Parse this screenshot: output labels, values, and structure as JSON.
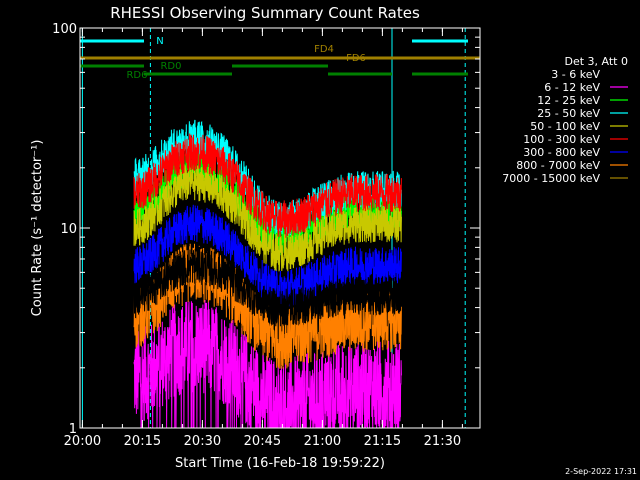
{
  "chart_data": {
    "type": "line",
    "title": "RHESSI Observing Summary Count Rates",
    "xlabel": "Start Time (16-Feb-18 19:59:22)",
    "ylabel": "Count Rate (s⁻¹ detector⁻¹)",
    "yscale": "log",
    "ylim": [
      1,
      100
    ],
    "xlim_min": [
      0,
      100
    ],
    "x_ticks": [
      {
        "label": "20:00",
        "min": 0.6
      },
      {
        "label": "20:15",
        "min": 15.6
      },
      {
        "label": "20:30",
        "min": 30.6
      },
      {
        "label": "20:45",
        "min": 45.6
      },
      {
        "label": "21:00",
        "min": 60.6
      },
      {
        "label": "21:15",
        "min": 75.6
      },
      {
        "label": "21:30",
        "min": 90.6
      }
    ],
    "y_ticks": [
      {
        "label": "1",
        "value": 1
      },
      {
        "label": "10",
        "value": 10
      },
      {
        "label": "100",
        "value": 100
      }
    ],
    "data_window_min": [
      13.5,
      80.4
    ],
    "legend_title": "Det 3, Att 0",
    "legend_position": "right",
    "series": [
      {
        "name": "3 - 6 keV",
        "color": "#000000",
        "level": [
          4.5,
          6.5,
          4.0,
          4.6
        ]
      },
      {
        "name": "6 - 12 keV",
        "color": "#ff00ff",
        "level": [
          1.8,
          2.6,
          1.3,
          1.6
        ]
      },
      {
        "name": "12 - 25 keV",
        "color": "#00ff00",
        "level": [
          12.0,
          20.0,
          9.0,
          12.5
        ]
      },
      {
        "name": "25 - 50 keV",
        "color": "#00ffff",
        "level": [
          18.0,
          28.0,
          11.0,
          15.5
        ]
      },
      {
        "name": "50 - 100 keV",
        "color": "#c8c800",
        "level": [
          10.0,
          17.0,
          7.5,
          10.5
        ]
      },
      {
        "name": "100 - 300 keV",
        "color": "#ff0000",
        "level": [
          15.0,
          24.0,
          11.0,
          15.0
        ]
      },
      {
        "name": "300 - 800 keV",
        "color": "#0000ff",
        "level": [
          6.5,
          10.5,
          5.0,
          6.5
        ]
      },
      {
        "name": "800 - 7000 keV",
        "color": "#ff8000",
        "level": [
          3.5,
          6.0,
          2.8,
          3.4
        ]
      },
      {
        "name": "7000 - 15000 keV",
        "color": "#a08000",
        "level": [
          0,
          0,
          0,
          0
        ]
      }
    ],
    "flags": [
      {
        "label": "N",
        "color": "#00ffff",
        "segments": [
          [
            0,
            16
          ],
          [
            83,
            97
          ]
        ],
        "level": 94
      },
      {
        "label": "FD4",
        "color": "#a08000",
        "segments": [
          [
            0,
            100
          ]
        ],
        "level": 71
      },
      {
        "label": "FD6",
        "color": "#a08000",
        "segments": [],
        "level": 68
      },
      {
        "label": "RD0",
        "color": "#008000",
        "segments": [
          [
            0,
            16
          ],
          [
            38,
            62
          ]
        ],
        "level": 63
      },
      {
        "label": "RD6",
        "color": "#008000",
        "segments": [
          [
            16,
            38
          ],
          [
            62,
            78
          ],
          [
            83,
            97
          ]
        ],
        "level": 59
      }
    ],
    "vlines": [
      {
        "min": 0.6,
        "color": "#00ffff",
        "style": "solid"
      },
      {
        "min": 17.6,
        "color": "#00ffff",
        "style": "dashed"
      },
      {
        "min": 78.0,
        "color": "#00ffff",
        "style": "solid"
      },
      {
        "min": 96.3,
        "color": "#00ffff",
        "style": "dashed"
      }
    ],
    "grid": false
  },
  "footer": {
    "date": "2-Sep-2022 17:31"
  }
}
